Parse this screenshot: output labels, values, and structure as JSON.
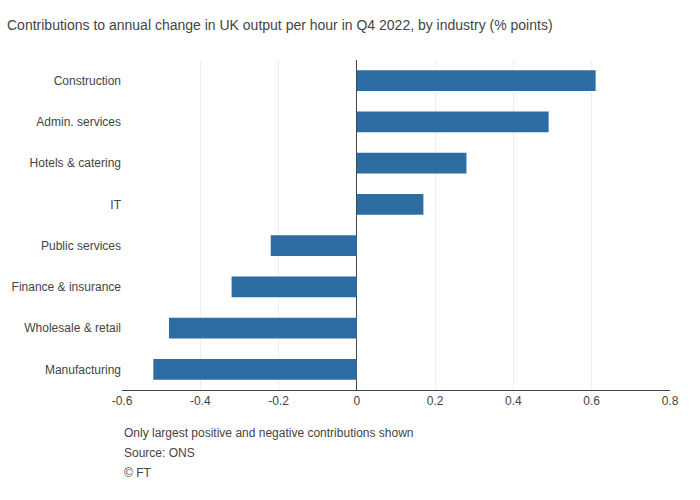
{
  "chart_data": {
    "type": "bar",
    "orientation": "horizontal",
    "title": "Contributions to annual change in UK output per hour in Q4 2022, by industry (% points)",
    "categories": [
      "Manufacturing",
      "Wholesale & retail",
      "Finance & insurance",
      "Public services",
      "IT",
      "Hotels & catering",
      "Admin. services",
      "Construction"
    ],
    "values": [
      -0.52,
      -0.48,
      -0.32,
      -0.22,
      0.17,
      0.28,
      0.49,
      0.61
    ],
    "color": "#2e6da4",
    "xlim": [
      -0.6,
      0.8
    ],
    "xticks": [
      -0.6,
      -0.4,
      -0.2,
      0,
      0.2,
      0.4,
      0.6,
      0.8
    ],
    "grid": true,
    "annotations": [
      "Only largest positive and negative contributions shown",
      "Source: ONS",
      "© FT"
    ]
  }
}
